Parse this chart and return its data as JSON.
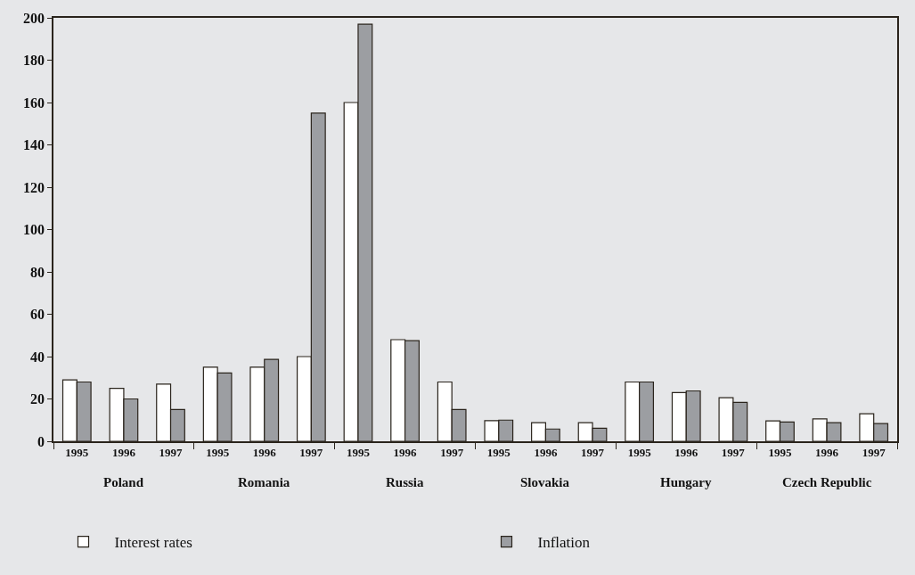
{
  "chart_data": {
    "type": "bar",
    "categories": [
      "1995",
      "1996",
      "1997",
      "1995",
      "1996",
      "1997",
      "1995",
      "1996",
      "1997",
      "1995",
      "1996",
      "1997",
      "1995",
      "1996",
      "1997",
      "1995",
      "1996",
      "1997"
    ],
    "annotations": [
      "Poland",
      "Romania",
      "Russia",
      "Slovakia",
      "Hungary",
      "Czech Republic"
    ],
    "series": [
      {
        "name": "Interest rates",
        "color": "#ffffff",
        "values": [
          29,
          25,
          27,
          35,
          35,
          40,
          160,
          48,
          28,
          9.7,
          8.8,
          8.8,
          28,
          23,
          20.6,
          9.6,
          10.6,
          13
        ]
      },
      {
        "name": "Inflation",
        "color": "#9c9ea2",
        "values": [
          28,
          20,
          15,
          32.3,
          38.7,
          155,
          197,
          47.5,
          15,
          10,
          5.8,
          6.2,
          28,
          23.8,
          18.4,
          9.1,
          8.8,
          8.4
        ]
      }
    ],
    "ylim": [
      0,
      200
    ],
    "yticks": [
      0,
      20,
      40,
      60,
      80,
      100,
      120,
      140,
      160,
      180,
      200
    ],
    "grid": false,
    "legend": "bottom"
  }
}
